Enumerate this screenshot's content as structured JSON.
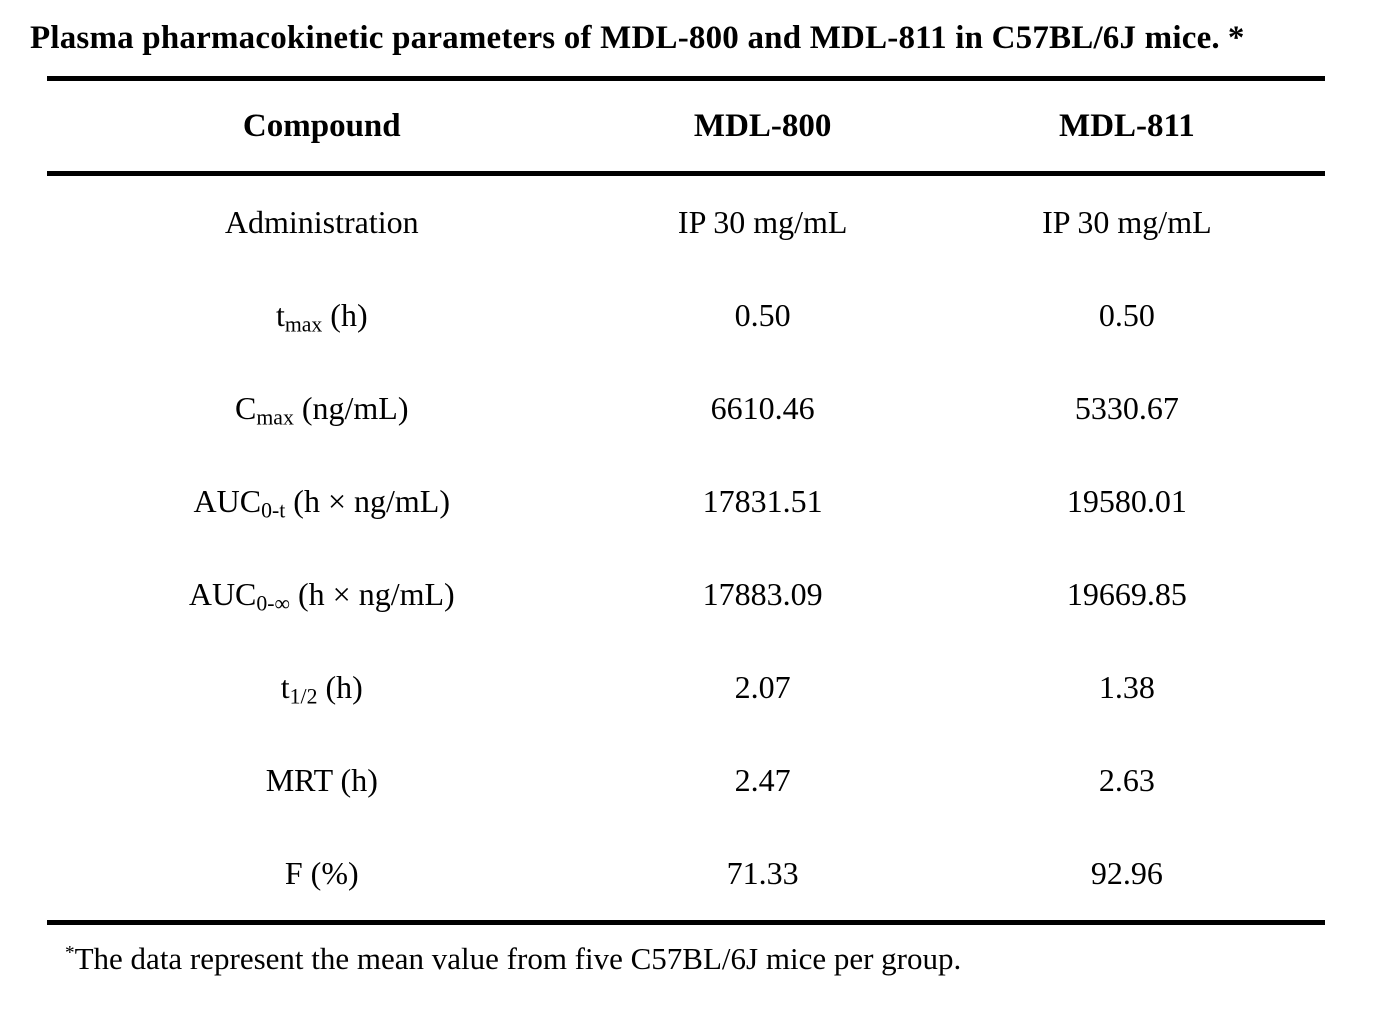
{
  "page": {
    "background": "#ffffff",
    "text_color": "#000000"
  },
  "title": {
    "text": "Plasma pharmacokinetic parameters of MDL-800 and MDL-811 in  C57BL/6J mice.",
    "marker": "*"
  },
  "table": {
    "columns": [
      "Compound",
      "MDL-800",
      "MDL-811"
    ],
    "rows": [
      {
        "label": {
          "pre": "Administration",
          "sub": "",
          "post": ""
        },
        "mdl800": "IP 30 mg/mL",
        "mdl811": "IP 30 mg/mL"
      },
      {
        "label": {
          "pre": "t",
          "sub": "max",
          "post": " (h)"
        },
        "mdl800": "0.50",
        "mdl811": "0.50"
      },
      {
        "label": {
          "pre": "C",
          "sub": "max",
          "post": " (ng/mL)"
        },
        "mdl800": "6610.46",
        "mdl811": "5330.67"
      },
      {
        "label": {
          "pre": "AUC",
          "sub": "0-t",
          "post": " (h × ng/mL)"
        },
        "mdl800": "17831.51",
        "mdl811": "19580.01"
      },
      {
        "label": {
          "pre": "AUC",
          "sub": "0-∞",
          "post": " (h × ng/mL)"
        },
        "mdl800": "17883.09",
        "mdl811": "19669.85"
      },
      {
        "label": {
          "pre": "t",
          "sub": "1/2",
          "post": " (h)"
        },
        "mdl800": "2.07",
        "mdl811": "1.38"
      },
      {
        "label": {
          "pre": "MRT (h)",
          "sub": "",
          "post": ""
        },
        "mdl800": "2.47",
        "mdl811": "2.63"
      },
      {
        "label": {
          "pre": "F (%)",
          "sub": "",
          "post": ""
        },
        "mdl800": "71.33",
        "mdl811": "92.96"
      }
    ]
  },
  "footnote": {
    "marker": "*",
    "text": "The data represent the mean value from five C57BL/6J mice per group."
  },
  "chart_data": {
    "type": "table",
    "title": "Plasma pharmacokinetic parameters of MDL-800 and MDL-811 in C57BL/6J mice.",
    "categories": [
      "Administration",
      "tmax (h)",
      "Cmax (ng/mL)",
      "AUC0-t (h × ng/mL)",
      "AUC0-∞ (h × ng/mL)",
      "t1/2 (h)",
      "MRT (h)",
      "F (%)"
    ],
    "series": [
      {
        "name": "MDL-800",
        "values": [
          "IP 30 mg/mL",
          0.5,
          6610.46,
          17831.51,
          17883.09,
          2.07,
          2.47,
          71.33
        ]
      },
      {
        "name": "MDL-811",
        "values": [
          "IP 30 mg/mL",
          0.5,
          5330.67,
          19580.01,
          19669.85,
          1.38,
          2.63,
          92.96
        ]
      }
    ],
    "footnote": "The data represent the mean value from five C57BL/6J mice per group."
  }
}
